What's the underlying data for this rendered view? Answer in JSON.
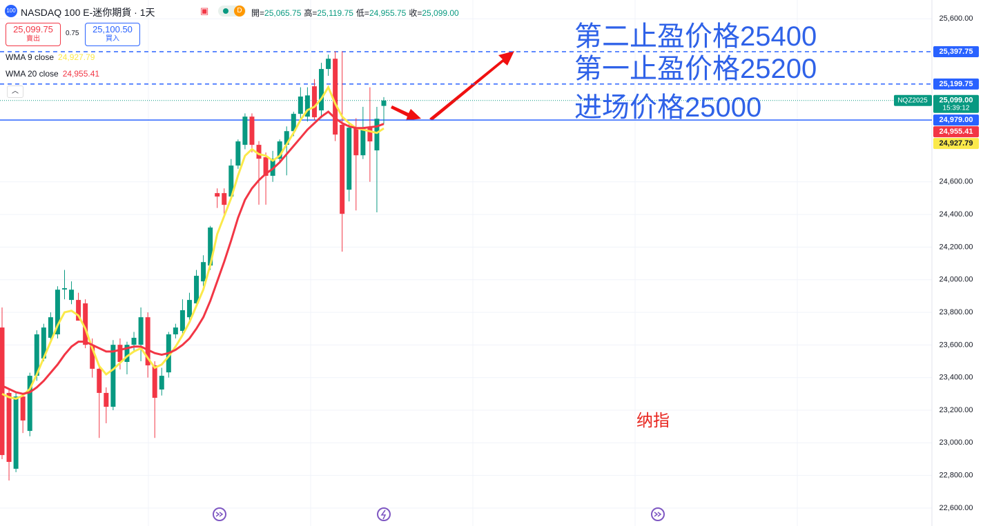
{
  "header": {
    "badge": "100",
    "symbol": "NASDAQ 100 E-迷你期貨 · 1天",
    "status": "D",
    "ohlc": [
      {
        "name": "開=",
        "value": "25,065.75"
      },
      {
        "name": "高=",
        "value": "25,119.75"
      },
      {
        "name": "低=",
        "value": "24,955.75"
      },
      {
        "name": "收=",
        "value": "25,099.00"
      }
    ],
    "sell": {
      "price": "25,099.75",
      "label": "賣出"
    },
    "spread": "0.75",
    "buy": {
      "price": "25,100.50",
      "label": "買入"
    }
  },
  "annotations": {
    "tp2": "第二止盈价格25400",
    "tp1": "第一止盈价格25200",
    "entry": "进场价格25000",
    "note": "纳指"
  },
  "chart_data": {
    "type": "candlestick",
    "up_color": "#089981",
    "down_color": "#f23645",
    "ylim": [
      22490,
      25715
    ],
    "yticks": [
      {
        "value": 22600,
        "label": "22,600.00"
      },
      {
        "value": 22800,
        "label": "22,800.00"
      },
      {
        "value": 23000,
        "label": "23,000.00"
      },
      {
        "value": 23200,
        "label": "23,200.00"
      },
      {
        "value": 23400,
        "label": "23,400.00"
      },
      {
        "value": 23600,
        "label": "23,600.00"
      },
      {
        "value": 23800,
        "label": "23,800.00"
      },
      {
        "value": 24000,
        "label": "24,000.00"
      },
      {
        "value": 24200,
        "label": "24,200.00"
      },
      {
        "value": 24400,
        "label": "24,400.00"
      },
      {
        "value": 24600,
        "label": "24,600.00"
      },
      {
        "value": 25600,
        "label": "25,600.00"
      }
    ],
    "grid": true,
    "open": [
      23707,
      23306,
      22841,
      23284,
      23073,
      23411,
      23517,
      23644,
      23665,
      23940,
      23876,
      23876,
      23855,
      23601,
      23454,
      23306,
      23221,
      23601,
      23496,
      23601,
      23601,
      23770,
      23475,
      23327,
      23432,
      23665,
      23686,
      23770,
      23855,
      23990,
      24087,
      24531,
      24531,
      24510,
      24700,
      24827,
      25000,
      24827,
      24751,
      24637,
      24742,
      24827,
      24911,
      25017,
      25000,
      25186,
      25038,
      25292,
      25355,
      24950,
      24552,
      24932,
      24763,
      24932,
      24793,
      25065.75
    ],
    "high": [
      23830,
      23330,
      23306,
      23300,
      23430,
      23690,
      23730,
      23800,
      23960,
      24060,
      23990,
      23920,
      23880,
      23640,
      23470,
      23340,
      23630,
      23640,
      23620,
      23680,
      23830,
      23800,
      23500,
      23460,
      23680,
      23730,
      23880,
      23920,
      24060,
      24150,
      24330,
      24560,
      24560,
      24740,
      24860,
      25020,
      25020,
      24850,
      24780,
      24790,
      24860,
      24940,
      25030,
      25180,
      25180,
      25230,
      25330,
      25380,
      25400,
      25400,
      24960,
      24990,
      25060,
      25180,
      25060,
      25119.75
    ],
    "low": [
      22900,
      22769,
      22820,
      23060,
      23040,
      23380,
      23500,
      23620,
      23640,
      23880,
      23850,
      23780,
      23580,
      23400,
      23030,
      23120,
      23200,
      23450,
      23420,
      23560,
      23500,
      23400,
      23030,
      23290,
      23400,
      23640,
      23660,
      23740,
      23830,
      23960,
      24060,
      24440,
      24400,
      24490,
      24680,
      24800,
      24780,
      24460,
      24460,
      24600,
      24720,
      24640,
      24880,
      24990,
      24970,
      24980,
      24990,
      25250,
      24850,
      24172,
      24480,
      24425,
      24740,
      24600,
      24413,
      24955.75
    ],
    "close": [
      22925,
      22883,
      23284,
      23137,
      23411,
      23665,
      23707,
      23770,
      23939,
      23948,
      23939,
      23749,
      23601,
      23454,
      23306,
      23221,
      23601,
      23496,
      23601,
      23644,
      23770,
      23475,
      23276,
      23411,
      23665,
      23707,
      23813,
      23876,
      24024,
      24108,
      24320,
      24510,
      24459,
      24700,
      24848,
      25000,
      24827,
      24742,
      24637,
      24742,
      24848,
      24911,
      25017,
      25123,
      25130,
      24996,
      25292,
      25355,
      24890,
      24404,
      24932,
      24763,
      24932,
      24848,
      24987,
      25099
    ],
    "series": [
      {
        "name": "WMA 9 close",
        "color": "#fbe94a",
        "last_label": "24,927.79",
        "values": [
          23300,
          23280,
          23270,
          23290,
          23330,
          23420,
          23520,
          23620,
          23720,
          23800,
          23810,
          23780,
          23700,
          23580,
          23470,
          23420,
          23450,
          23490,
          23530,
          23560,
          23580,
          23520,
          23460,
          23480,
          23530,
          23590,
          23660,
          23740,
          23840,
          23940,
          24090,
          24280,
          24390,
          24500,
          24640,
          24760,
          24800,
          24770,
          24760,
          24730,
          24760,
          24830,
          24900,
          24980,
          25040,
          25060,
          25110,
          25180,
          25080,
          25000,
          24960,
          24930,
          24920,
          24910,
          24900,
          24927.79
        ]
      },
      {
        "name": "WMA 20 close",
        "color": "#f23645",
        "last_label": "24,955.41",
        "values": [
          23350,
          23330,
          23310,
          23300,
          23310,
          23340,
          23380,
          23430,
          23480,
          23540,
          23590,
          23620,
          23620,
          23600,
          23580,
          23560,
          23560,
          23570,
          23580,
          23590,
          23590,
          23570,
          23550,
          23540,
          23550,
          23570,
          23600,
          23640,
          23700,
          23770,
          23870,
          23990,
          24110,
          24240,
          24380,
          24490,
          24560,
          24610,
          24650,
          24680,
          24720,
          24770,
          24820,
          24870,
          24920,
          24960,
          25000,
          25030,
          24990,
          24960,
          24940,
          24930,
          24930,
          24935,
          24940,
          24955.41
        ]
      }
    ],
    "price_lines": [
      {
        "value": 25397.75,
        "label": "25,397.75",
        "color": "#2962ff",
        "style": "dashed"
      },
      {
        "value": 25199.75,
        "label": "25,199.75",
        "color": "#2962ff",
        "style": "dashed"
      },
      {
        "value": 25099,
        "label": "25,099.00",
        "color": "#089981",
        "style": "dotted",
        "symbol": "NQZ2025",
        "countdown": "15:39:12"
      },
      {
        "value": 24979,
        "label": "24,979.00",
        "color": "#2962ff",
        "style": "solid"
      }
    ]
  }
}
